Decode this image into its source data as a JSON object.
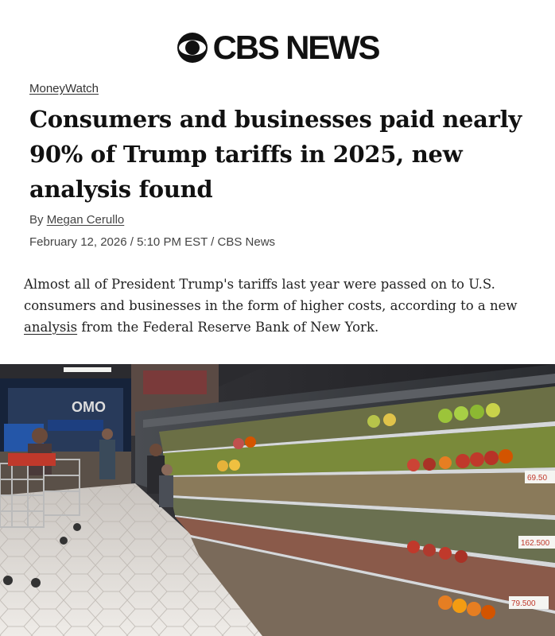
{
  "brand": {
    "name": "CBS NEWS"
  },
  "article": {
    "section": "MoneyWatch",
    "headline": "Consumers and businesses paid nearly 90% of Trump tariffs in 2025, new analysis found",
    "byline_prefix": "By ",
    "author": "Megan Cerullo",
    "dateline": "February 12, 2026 / 5:10 PM EST / CBS News"
  },
  "lede": {
    "before": "Almost all of President Trump's tariffs last year were passed on to U.S. consumers and businesses in the form of higher costs, according to a new ",
    "link": "analysis",
    "after": " from the Federal Reserve Bank of New York."
  },
  "photo": {
    "store_sign": "OMO",
    "price_tags": [
      "69.50",
      "162.500",
      "79.500"
    ]
  }
}
